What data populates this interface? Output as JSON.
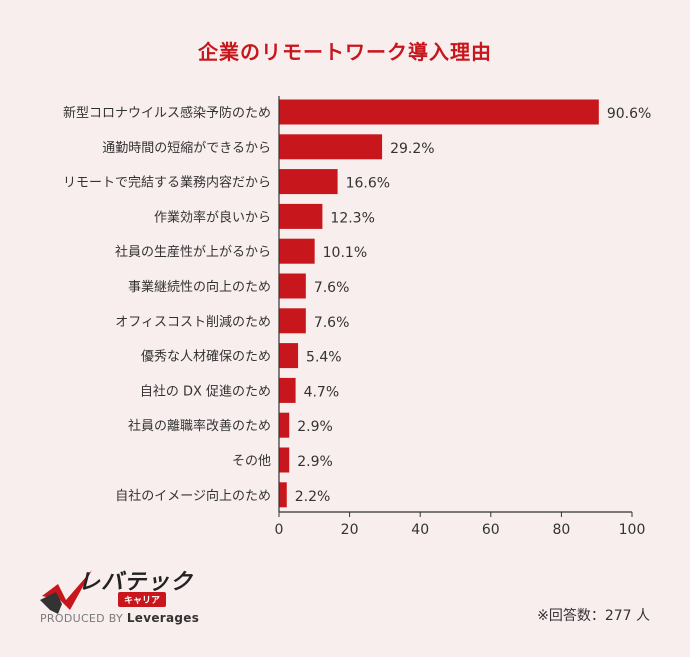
{
  "brand": {
    "logo_text": "レバテック",
    "logo_sub": "キャリア",
    "produced_prefix": "PRODUCED BY",
    "produced_brand": "Leverages",
    "accent_color": "#c8161d"
  },
  "note": "※回答数：277 人",
  "chart_data": {
    "type": "bar",
    "orientation": "horizontal",
    "title": "企業のリモートワーク導入理由",
    "xlabel": "",
    "ylabel": "",
    "xlim": [
      0,
      100
    ],
    "x_ticks": [
      0,
      20,
      40,
      60,
      80,
      100
    ],
    "x_tick_labels": [
      "0",
      "20",
      "40",
      "60",
      "80",
      "100"
    ],
    "bar_color": "#c8161d",
    "categories": [
      "新型コロナウイルス感染予防のため",
      "通勤時間の短縮ができるから",
      "リモートで完結する業務内容だから",
      "作業効率が良いから",
      "社員の生産性が上がるから",
      "事業継続性の向上のため",
      "オフィスコスト削減のため",
      "優秀な人材確保のため",
      "自社の DX 促進のため",
      "社員の離職率改善のため",
      "その他",
      "自社のイメージ向上のため"
    ],
    "values": [
      90.6,
      29.2,
      16.6,
      12.3,
      10.1,
      7.6,
      7.6,
      5.4,
      4.7,
      2.9,
      2.9,
      2.2
    ],
    "value_labels": [
      "90.6%",
      "29.2%",
      "16.6%",
      "12.3%",
      "10.1%",
      "7.6%",
      "7.6%",
      "5.4%",
      "4.7%",
      "2.9%",
      "2.9%",
      "2.2%"
    ]
  }
}
